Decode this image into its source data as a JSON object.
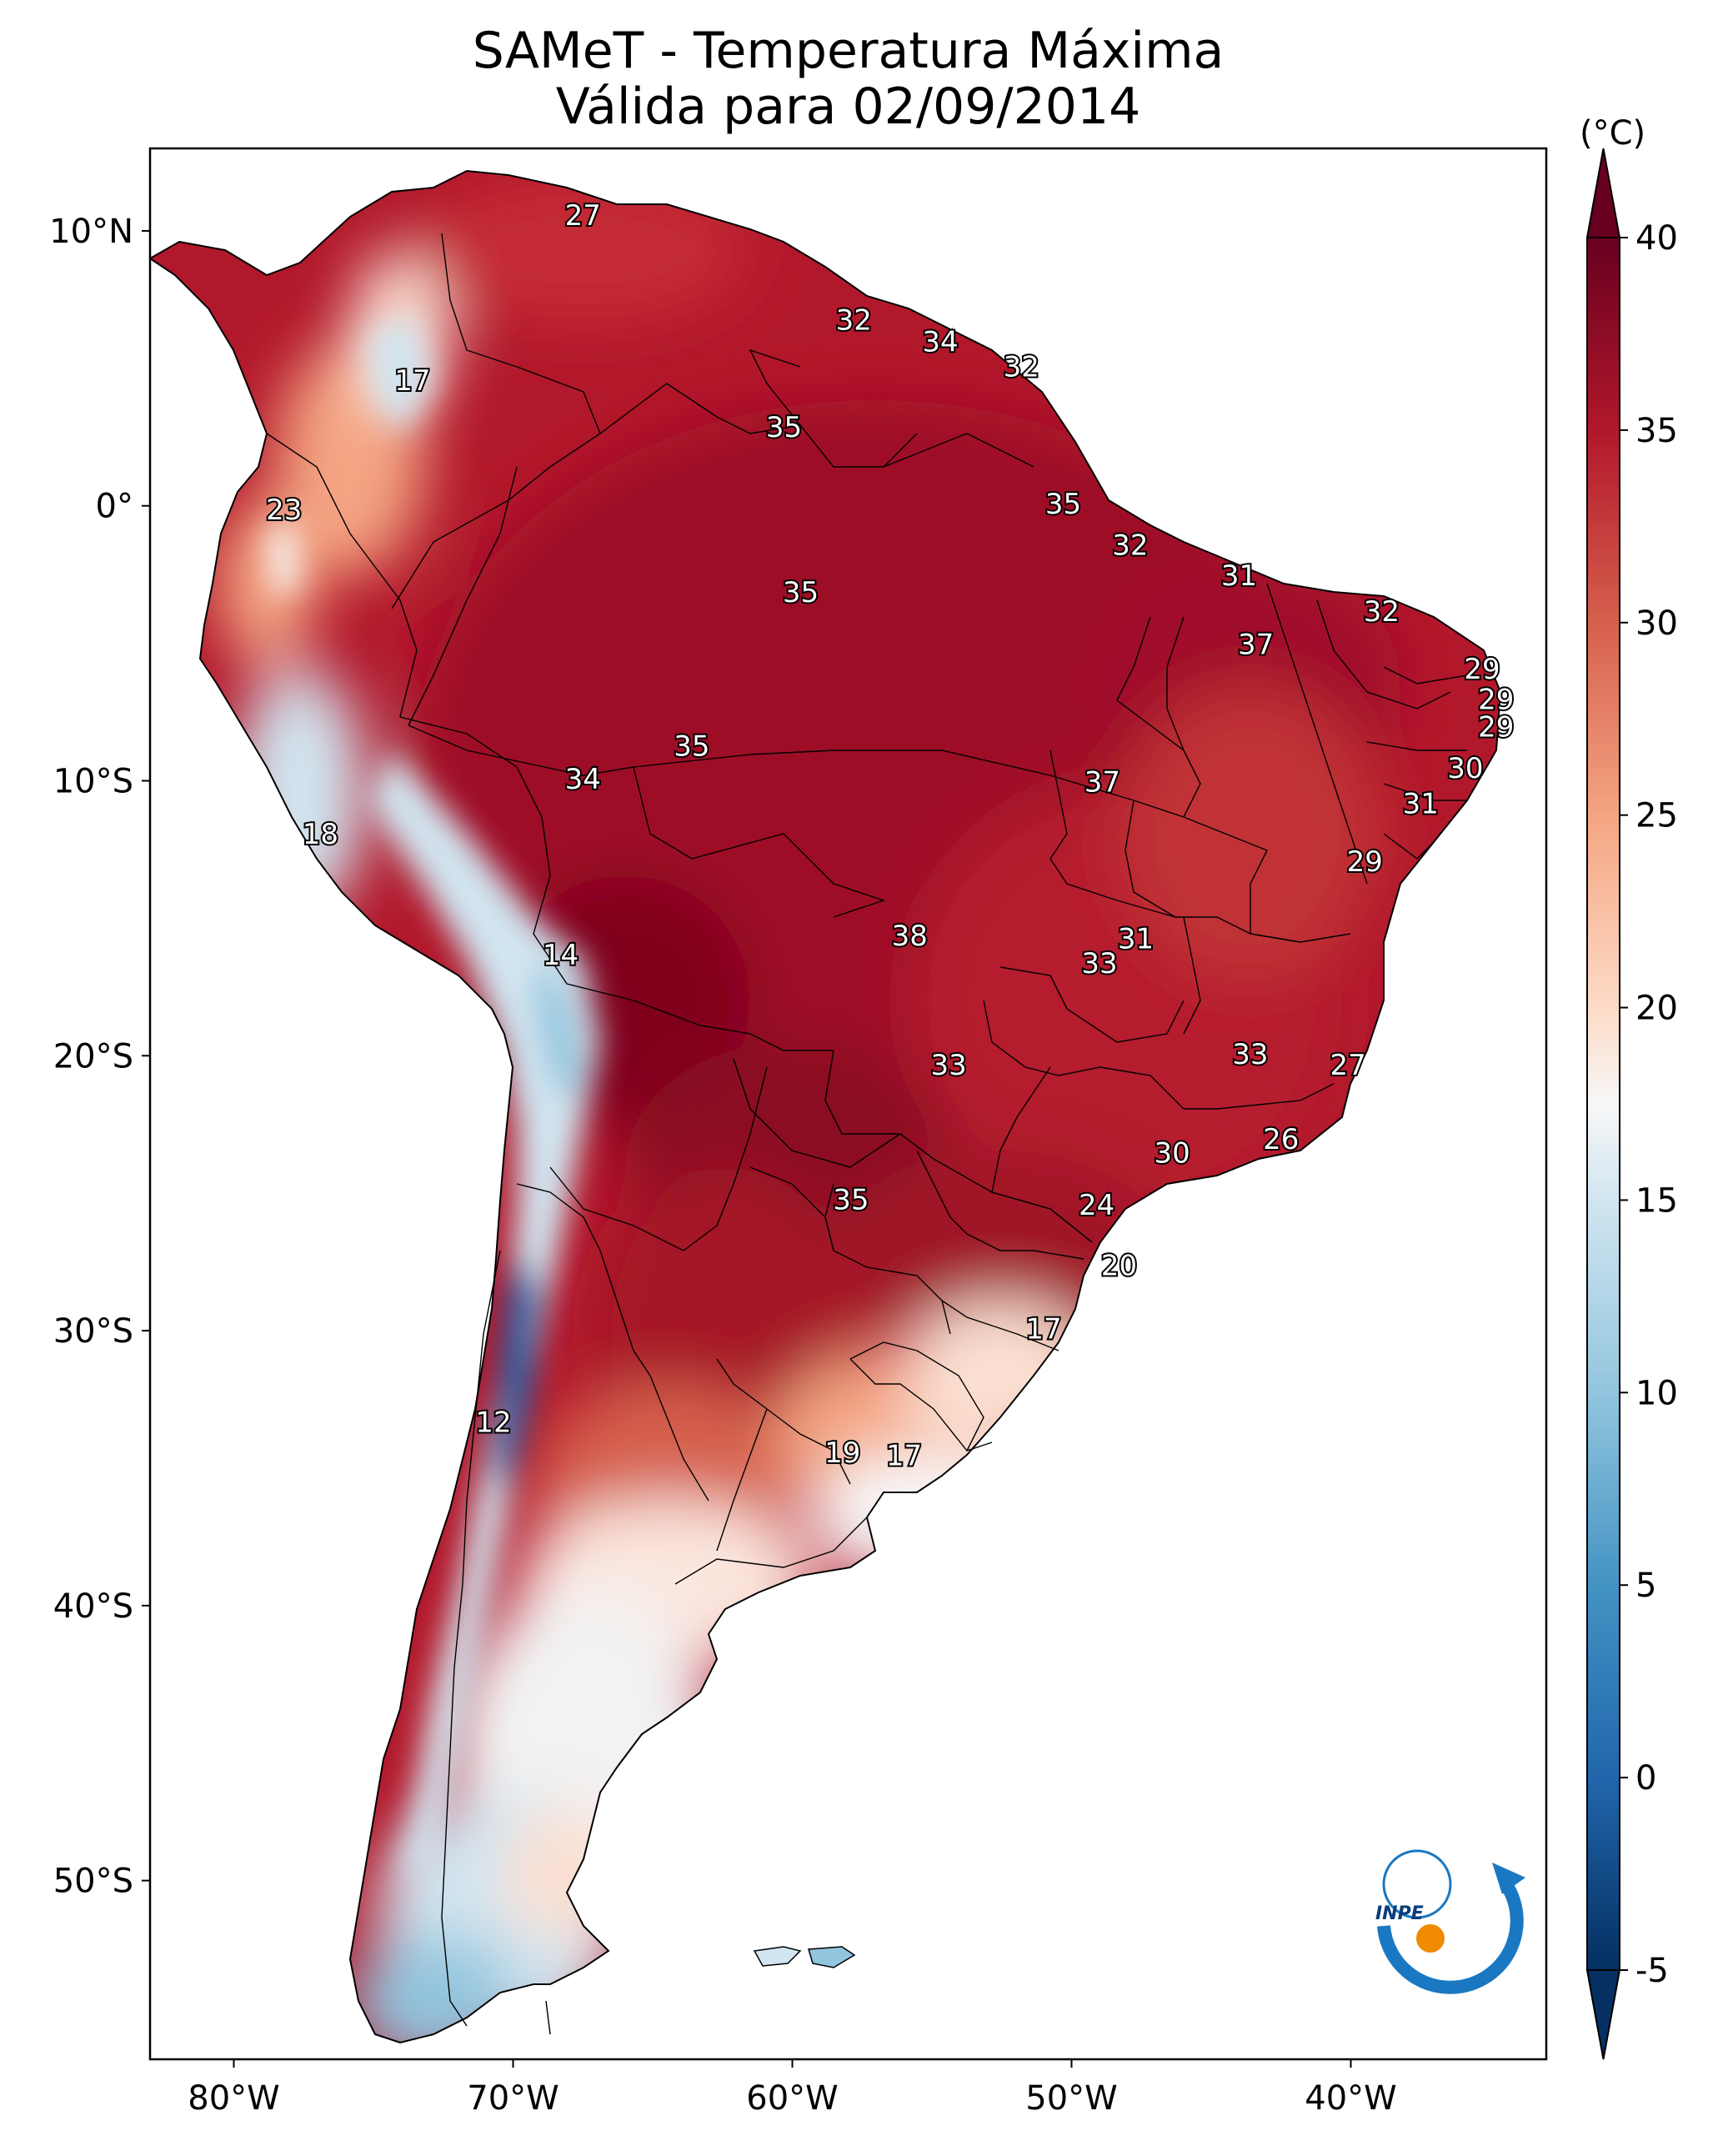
{
  "title": {
    "line1": "SAMeT - Temperatura Máxima",
    "line2": "Válida para 02/09/2014"
  },
  "colorbar": {
    "unit_label": "(°C)",
    "ticks": [
      "40",
      "35",
      "30",
      "25",
      "20",
      "15",
      "10",
      "5",
      "0",
      "-5"
    ],
    "tick_values": [
      40,
      35,
      30,
      25,
      20,
      15,
      10,
      5,
      0,
      -5
    ],
    "range": [
      -5,
      40
    ]
  },
  "axes": {
    "lon_labels": [
      "80°W",
      "70°W",
      "60°W",
      "50°W",
      "40°W"
    ],
    "lon_values": [
      -80,
      -70,
      -60,
      -50,
      -40
    ],
    "lat_labels": [
      "10°N",
      "0°",
      "10°S",
      "20°S",
      "30°S",
      "40°S",
      "50°S"
    ],
    "lat_values": [
      10,
      0,
      -10,
      -20,
      -30,
      -40,
      -50
    ],
    "lon_range": [
      -83,
      -33
    ],
    "lat_range": [
      -56.5,
      13
    ]
  },
  "station_values": [
    {
      "label": "27",
      "lon": -67.5,
      "lat": 10.5
    },
    {
      "label": "32",
      "lon": -57.8,
      "lat": 6.7
    },
    {
      "label": "34",
      "lon": -54.7,
      "lat": 5.9
    },
    {
      "label": "32",
      "lon": -51.8,
      "lat": 5.0
    },
    {
      "label": "17",
      "lon": -73.6,
      "lat": 4.5
    },
    {
      "label": "35",
      "lon": -60.3,
      "lat": 2.8
    },
    {
      "label": "35",
      "lon": -50.3,
      "lat": 0.0
    },
    {
      "label": "23",
      "lon": -78.2,
      "lat": -0.2
    },
    {
      "label": "32",
      "lon": -47.9,
      "lat": -1.5
    },
    {
      "label": "31",
      "lon": -44.0,
      "lat": -2.6
    },
    {
      "label": "35",
      "lon": -59.7,
      "lat": -3.2
    },
    {
      "label": "32",
      "lon": -38.9,
      "lat": -3.9
    },
    {
      "label": "37",
      "lon": -43.4,
      "lat": -5.1
    },
    {
      "label": "29",
      "lon": -35.3,
      "lat": -6.0
    },
    {
      "label": "29",
      "lon": -34.8,
      "lat": -7.1
    },
    {
      "label": "29",
      "lon": -34.8,
      "lat": -8.1
    },
    {
      "label": "35",
      "lon": -63.6,
      "lat": -8.8
    },
    {
      "label": "30",
      "lon": -35.9,
      "lat": -9.6
    },
    {
      "label": "34",
      "lon": -67.5,
      "lat": -10.0
    },
    {
      "label": "37",
      "lon": -48.9,
      "lat": -10.1
    },
    {
      "label": "31",
      "lon": -37.5,
      "lat": -10.9
    },
    {
      "label": "18",
      "lon": -76.9,
      "lat": -12.0
    },
    {
      "label": "29",
      "lon": -39.5,
      "lat": -13.0
    },
    {
      "label": "38",
      "lon": -55.8,
      "lat": -15.7
    },
    {
      "label": "31",
      "lon": -47.7,
      "lat": -15.8
    },
    {
      "label": "33",
      "lon": -49.0,
      "lat": -16.7
    },
    {
      "label": "14",
      "lon": -68.3,
      "lat": -16.4
    },
    {
      "label": "33",
      "lon": -43.6,
      "lat": -20.0
    },
    {
      "label": "27",
      "lon": -40.1,
      "lat": -20.4
    },
    {
      "label": "33",
      "lon": -54.4,
      "lat": -20.4
    },
    {
      "label": "26",
      "lon": -42.5,
      "lat": -23.1
    },
    {
      "label": "30",
      "lon": -46.4,
      "lat": -23.6
    },
    {
      "label": "35",
      "lon": -57.9,
      "lat": -25.3
    },
    {
      "label": "24",
      "lon": -49.1,
      "lat": -25.5
    },
    {
      "label": "20",
      "lon": -48.3,
      "lat": -27.7
    },
    {
      "label": "17",
      "lon": -51.0,
      "lat": -30.0
    },
    {
      "label": "12",
      "lon": -70.7,
      "lat": -33.4
    },
    {
      "label": "19",
      "lon": -58.2,
      "lat": -34.5
    },
    {
      "label": "17",
      "lon": -56.0,
      "lat": -34.6
    }
  ],
  "logo": {
    "text": "INPE"
  },
  "colors": {
    "ocean": "#ffffff",
    "border": "#000000",
    "warm_max": "#67001f",
    "cold_min": "#053061"
  }
}
